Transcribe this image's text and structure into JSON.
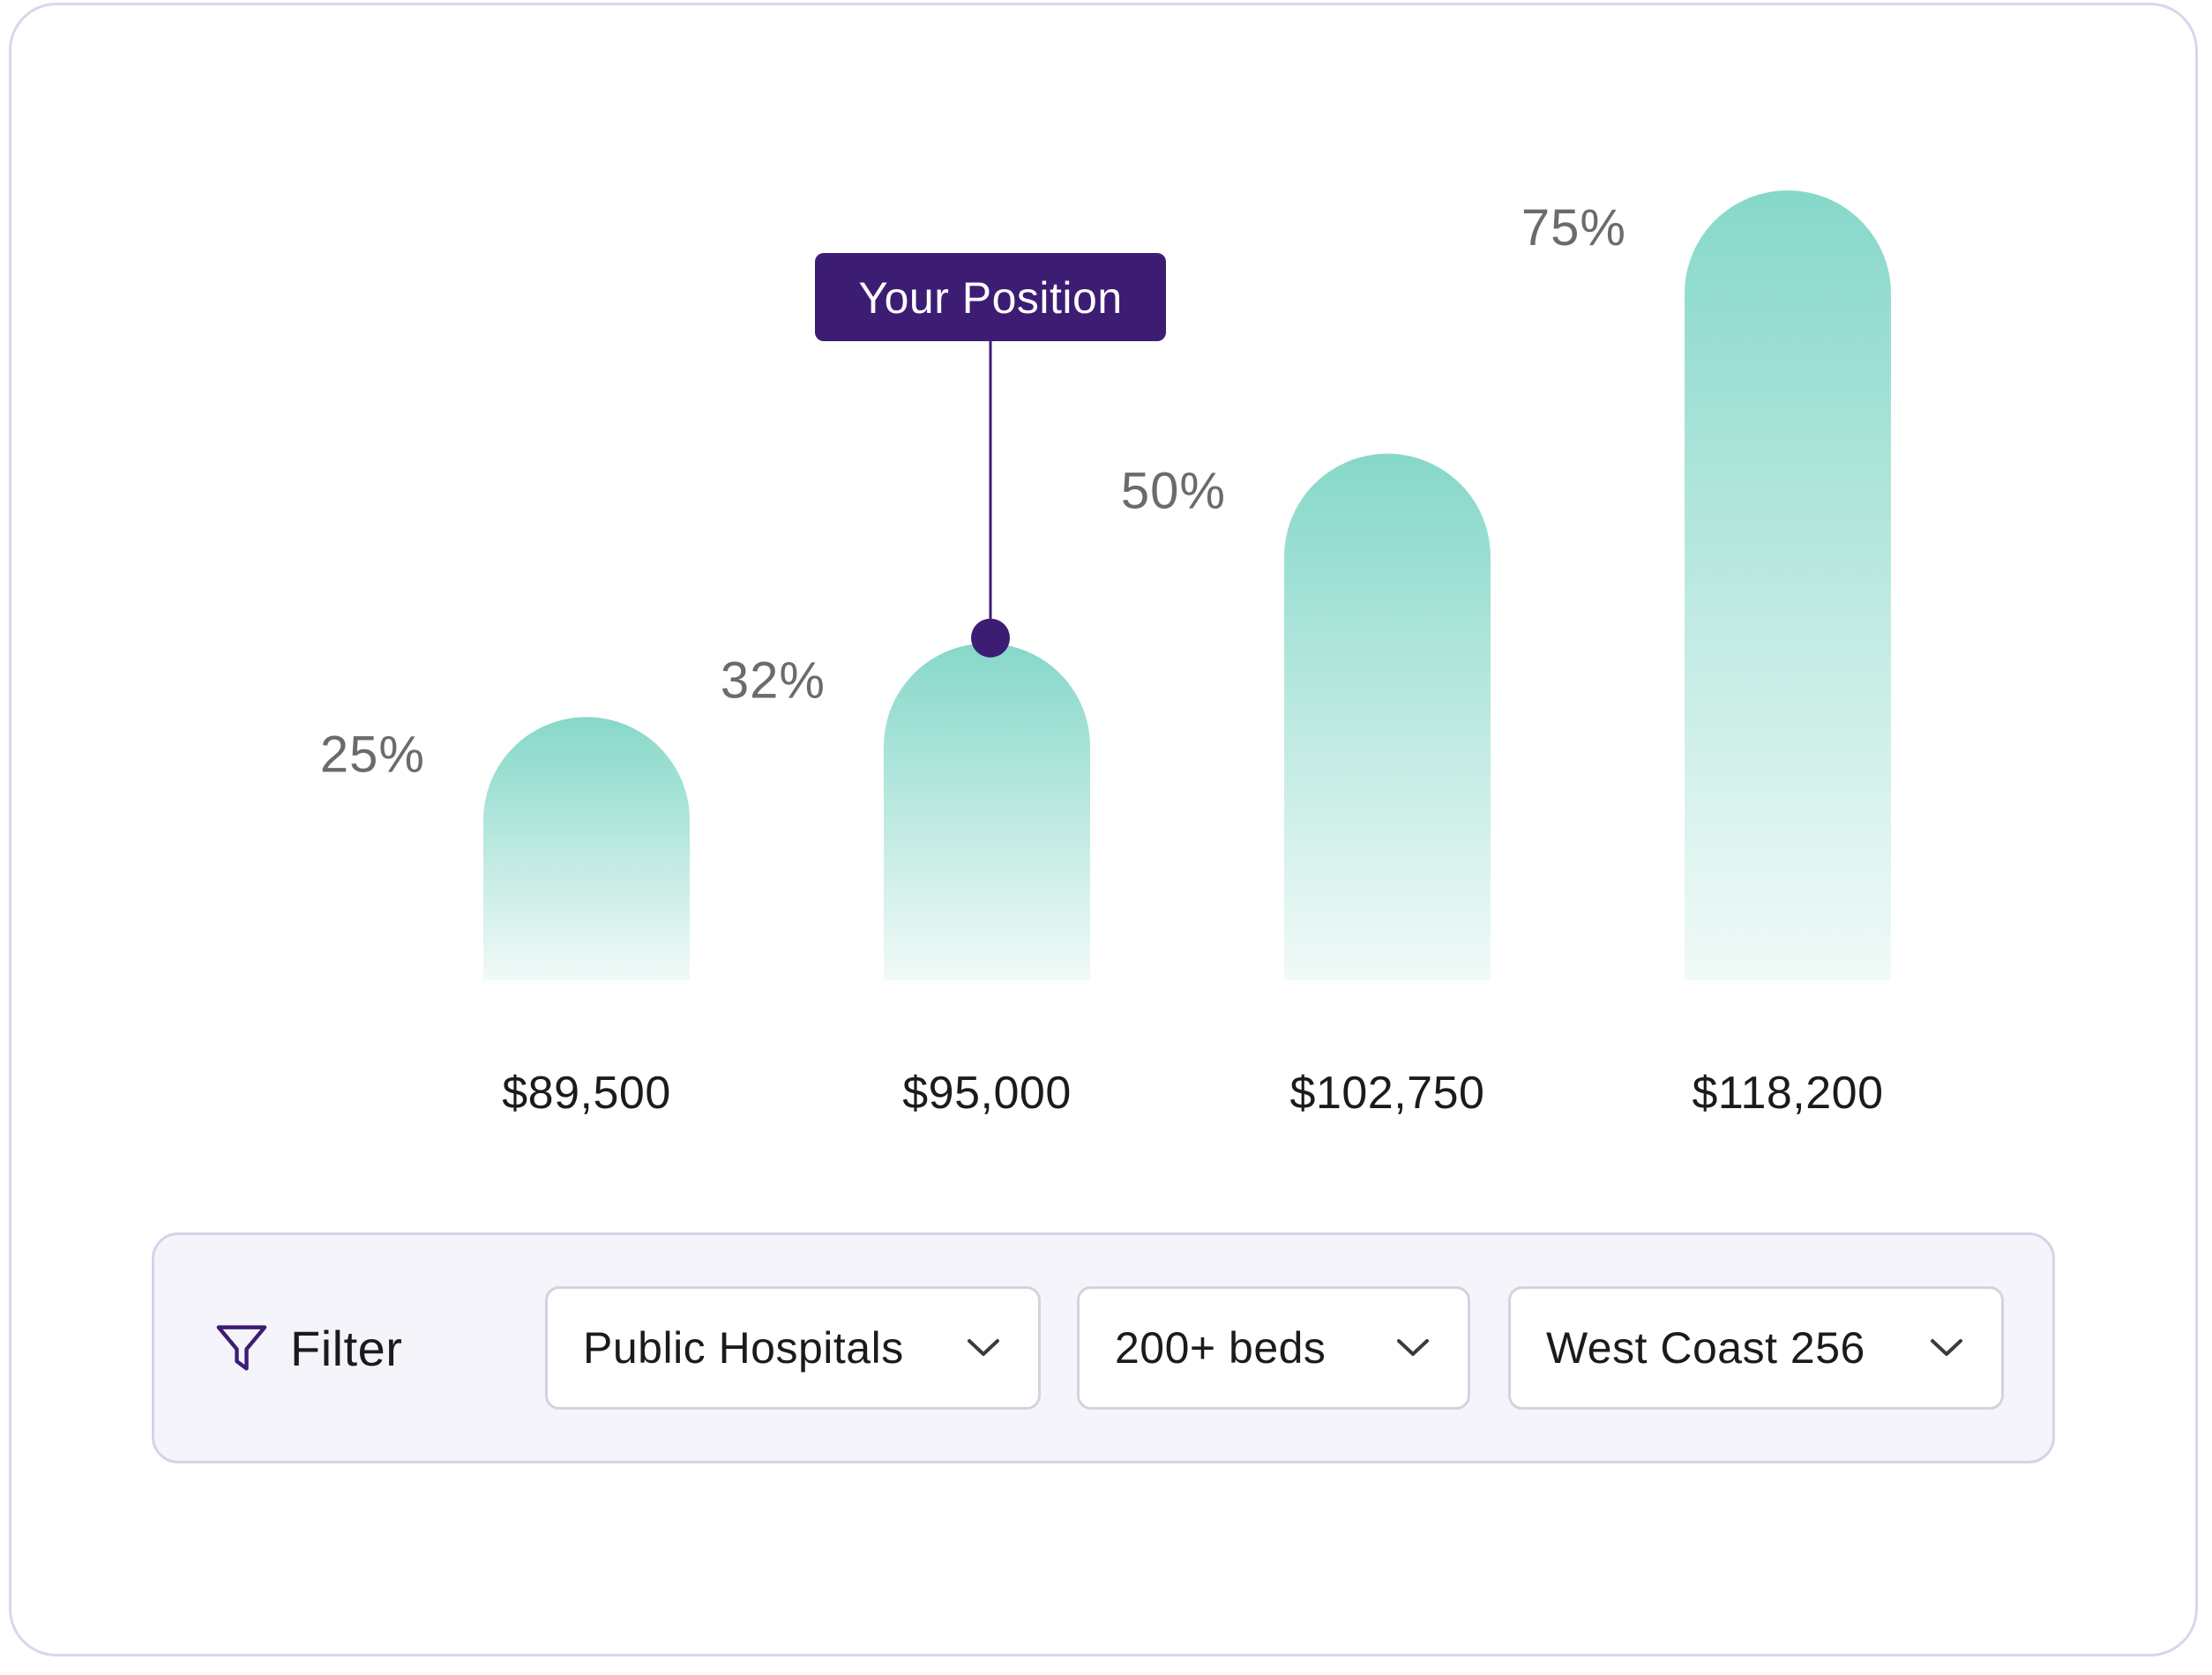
{
  "chart_data": {
    "type": "bar",
    "categories": [
      "$89,500",
      "$95,000",
      "$102,750",
      "$118,200"
    ],
    "values": [
      25,
      32,
      50,
      75
    ],
    "value_labels": [
      "25%",
      "32%",
      "50%",
      "75%"
    ],
    "title": "",
    "xlabel": "",
    "ylabel": "",
    "ylim": [
      0,
      75
    ],
    "grid": false,
    "highlight": {
      "category_index": 1,
      "label": "Your Position"
    },
    "colors": {
      "bar_top": "#86d8c9",
      "bar_bottom": "#f1faf8",
      "marker": "#3d1d73",
      "value_label": "#6b6b6b",
      "category_label": "#1b1b1f"
    }
  },
  "filter": {
    "label": "Filter",
    "icon": "funnel-icon",
    "dropdowns": [
      {
        "value": "Public Hospitals",
        "icon": "chevron-down-icon"
      },
      {
        "value": "200+ beds",
        "icon": "chevron-down-icon"
      },
      {
        "value": "West Coast 256",
        "icon": "chevron-down-icon"
      }
    ]
  }
}
